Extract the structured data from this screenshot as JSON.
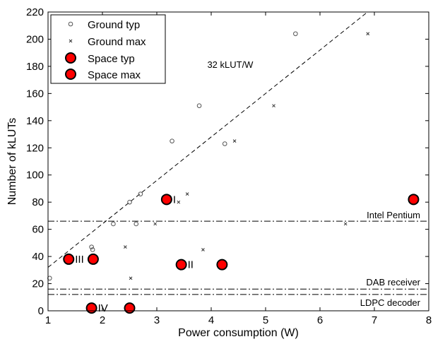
{
  "chart_data": {
    "type": "scatter",
    "xlabel": "Power consumption (W)",
    "ylabel": "Number of kLUTs",
    "xlim": [
      1,
      8
    ],
    "ylim": [
      0,
      220
    ],
    "xticks": [
      "1",
      "2",
      "3",
      "4",
      "5",
      "6",
      "7",
      "8"
    ],
    "yticks": [
      "0",
      "20",
      "40",
      "60",
      "80",
      "100",
      "120",
      "140",
      "160",
      "180",
      "200",
      "220"
    ],
    "grid": false,
    "legend": "top-left",
    "series": [
      {
        "name": "Ground typ",
        "marker": "open-circle",
        "points": [
          [
            1.03,
            24
          ],
          [
            1.8,
            47
          ],
          [
            1.82,
            45
          ],
          [
            2.2,
            64
          ],
          [
            2.5,
            80
          ],
          [
            2.62,
            64
          ],
          [
            2.7,
            86
          ],
          [
            3.28,
            125
          ],
          [
            3.78,
            151
          ],
          [
            4.25,
            123
          ],
          [
            5.55,
            204
          ]
        ]
      },
      {
        "name": "Ground max",
        "marker": "x",
        "points": [
          [
            2.42,
            47
          ],
          [
            2.52,
            24
          ],
          [
            2.97,
            64
          ],
          [
            3.4,
            80
          ],
          [
            3.56,
            86
          ],
          [
            3.85,
            45
          ],
          [
            4.43,
            125
          ],
          [
            5.15,
            151
          ],
          [
            6.47,
            64
          ],
          [
            6.88,
            204
          ]
        ]
      },
      {
        "name": "Space typ",
        "marker": "filled-circle",
        "points": [
          [
            1.38,
            38
          ],
          [
            1.8,
            2
          ],
          [
            3.18,
            82
          ],
          [
            3.45,
            34
          ]
        ]
      },
      {
        "name": "Space max",
        "marker": "filled-circle",
        "points": [
          [
            1.83,
            38
          ],
          [
            2.5,
            2
          ],
          [
            4.2,
            34
          ],
          [
            7.72,
            82
          ]
        ]
      }
    ],
    "lines": [
      {
        "label": "32 kLUT/W",
        "style": "dashed",
        "slope": 32,
        "intercept": 0
      },
      {
        "label": "Intel Pentium",
        "style": "dash-dot",
        "y": 66
      },
      {
        "label": "DAB receiver",
        "style": "dash-dot",
        "y": 16
      },
      {
        "label": "LDPC decoder",
        "style": "dash-dot",
        "y": 12
      }
    ],
    "annotations": [
      {
        "text": "I",
        "x": 3.18,
        "y": 82
      },
      {
        "text": "II",
        "x": 3.45,
        "y": 34
      },
      {
        "text": "III",
        "x": 1.38,
        "y": 38
      },
      {
        "text": "IV",
        "x": 1.8,
        "y": 2
      }
    ],
    "colors": {
      "space_fill": "#ff0000",
      "marker_edge": "#000000",
      "ground_marker": "#555555"
    }
  }
}
